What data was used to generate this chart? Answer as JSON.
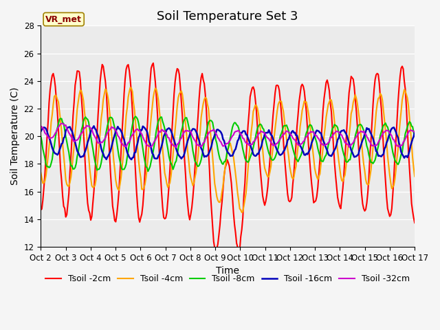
{
  "title": "Soil Temperature Set 3",
  "xlabel": "Time",
  "ylabel": "Soil Temperature (C)",
  "ylim": [
    12,
    28
  ],
  "xtick_labels": [
    "Oct 2",
    "Oct 3",
    "Oct 4",
    "Oct 5",
    "Oct 6",
    "Oct 7",
    "Oct 8",
    "Oct 9",
    "Oct 10",
    "Oct 11",
    "Oct 12",
    "Oct 13",
    "Oct 14",
    "Oct 15",
    "Oct 16",
    "Oct 17"
  ],
  "annotation": "VR_met",
  "plot_bg_color": "#ebebeb",
  "fig_bg_color": "#f5f5f5",
  "lines": [
    {
      "label": "Tsoil -2cm",
      "color": "#ff0000",
      "lw": 1.5
    },
    {
      "label": "Tsoil -4cm",
      "color": "#ffa500",
      "lw": 1.5
    },
    {
      "label": "Tsoil -8cm",
      "color": "#00cc00",
      "lw": 1.5
    },
    {
      "label": "Tsoil -16cm",
      "color": "#0000bb",
      "lw": 1.8
    },
    {
      "label": "Tsoil -32cm",
      "color": "#cc00cc",
      "lw": 1.5
    }
  ],
  "title_fontsize": 13,
  "axis_label_fontsize": 10,
  "tick_fontsize": 8.5,
  "grid_color": "#ffffff",
  "legend_fontsize": 9
}
